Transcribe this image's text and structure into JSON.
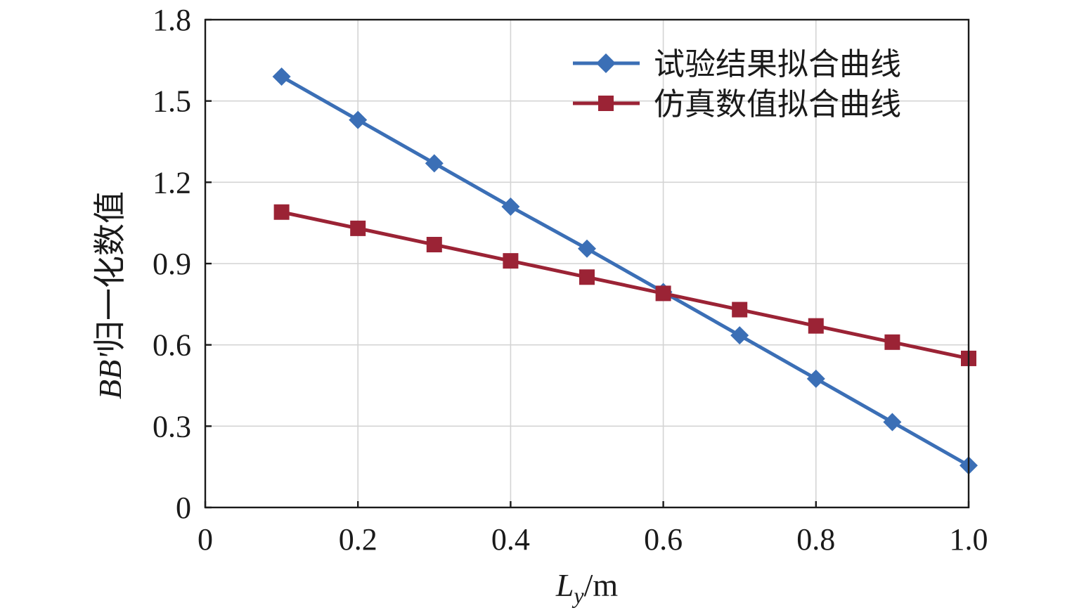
{
  "chart_data": {
    "type": "line",
    "xlabel": {
      "main": "L",
      "sub": "y",
      "unit": "/m"
    },
    "ylabel": {
      "italic": "BB'",
      "rest": "归一化数值"
    },
    "xlim": [
      0,
      1.0
    ],
    "ylim": [
      0,
      1.8
    ],
    "x_ticks": [
      "0",
      "0.2",
      "0.4",
      "0.6",
      "0.8",
      "1.0"
    ],
    "y_ticks": [
      "0",
      "0.3",
      "0.6",
      "0.9",
      "1.2",
      "1.5",
      "1.8"
    ],
    "x_tick_values": [
      0,
      0.2,
      0.4,
      0.6,
      0.8,
      1.0
    ],
    "y_tick_values": [
      0,
      0.3,
      0.6,
      0.9,
      1.2,
      1.5,
      1.8
    ],
    "grid": true,
    "legend_position": "top-right",
    "series": [
      {
        "name": "试验结果拟合曲线",
        "color": "#3b6fb6",
        "marker": "diamond",
        "x": [
          0.1,
          0.2,
          0.3,
          0.4,
          0.5,
          0.6,
          0.7,
          0.8,
          0.9,
          1.0
        ],
        "y": [
          1.59,
          1.43,
          1.27,
          1.11,
          0.955,
          0.795,
          0.635,
          0.475,
          0.315,
          0.155
        ]
      },
      {
        "name": "仿真数值拟合曲线",
        "color": "#9b2335",
        "marker": "square",
        "x": [
          0.1,
          0.2,
          0.3,
          0.4,
          0.5,
          0.6,
          0.7,
          0.8,
          0.9,
          1.0
        ],
        "y": [
          1.09,
          1.03,
          0.97,
          0.91,
          0.85,
          0.79,
          0.73,
          0.67,
          0.61,
          0.55
        ]
      }
    ]
  }
}
